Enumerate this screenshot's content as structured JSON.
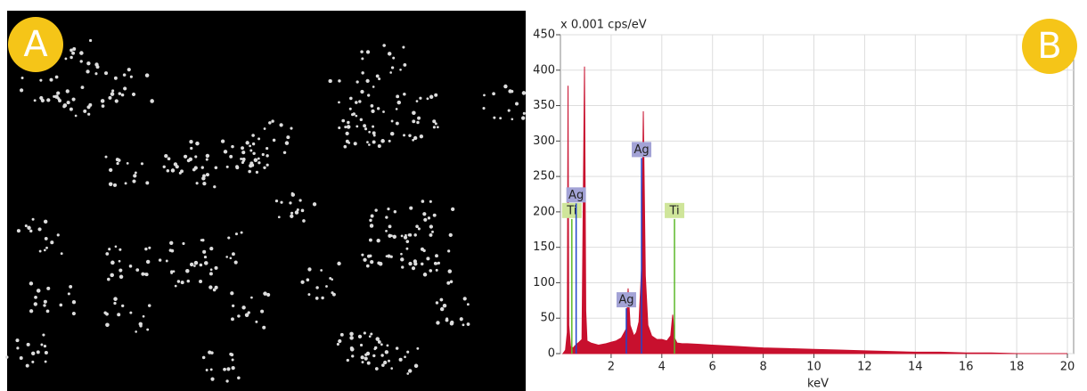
{
  "image_panel": {
    "label": "A"
  },
  "chart_data": {
    "type": "area",
    "panel_label": "B",
    "y_unit_label": "x 0.001 cps/eV",
    "x_label": "keV",
    "x": [
      0.1,
      0.2,
      0.27,
      0.3,
      0.33,
      0.4,
      0.5,
      0.6,
      0.7,
      0.85,
      0.95,
      1.0,
      1.05,
      1.2,
      1.5,
      1.8,
      2.0,
      2.2,
      2.4,
      2.6,
      2.67,
      2.75,
      2.9,
      3.0,
      3.1,
      3.2,
      3.27,
      3.35,
      3.45,
      3.6,
      3.8,
      4.0,
      4.2,
      4.35,
      4.43,
      4.5,
      4.6,
      4.8,
      5.0,
      5.5,
      6,
      6.5,
      7,
      7.5,
      8,
      9,
      10,
      11,
      12,
      13,
      14,
      15,
      16,
      17,
      18,
      19,
      20
    ],
    "series": [
      {
        "color": "#c8102e",
        "values": [
          0,
          5,
          30,
          378,
          40,
          10,
          8,
          12,
          15,
          20,
          405,
          60,
          18,
          15,
          12,
          14,
          16,
          18,
          22,
          35,
          92,
          40,
          25,
          30,
          45,
          120,
          342,
          110,
          40,
          25,
          20,
          20,
          18,
          25,
          55,
          22,
          15,
          14,
          14,
          13,
          12,
          11,
          10,
          9,
          8,
          7,
          6,
          5,
          4,
          3,
          2,
          2,
          1,
          1,
          0,
          0,
          0
        ]
      }
    ],
    "element_lines": [
      {
        "label": "Ti",
        "x": 0.45,
        "height": 190,
        "color": "#5cb82a",
        "label_color": "#cfe59a"
      },
      {
        "label": "Ag",
        "x": 0.62,
        "height": 212,
        "color": "#2244cc",
        "label_color": "#a3a3d6"
      },
      {
        "label": "Ag",
        "x": 2.6,
        "height": 64,
        "color": "#2244cc",
        "label_color": "#a3a3d6"
      },
      {
        "label": "Ag",
        "x": 3.2,
        "height": 276,
        "color": "#2244cc",
        "label_color": "#a3a3d6"
      },
      {
        "label": "Ti",
        "x": 4.5,
        "height": 190,
        "color": "#5cb82a",
        "label_color": "#cfe59a"
      }
    ],
    "xlim": [
      0,
      20
    ],
    "xticks": [
      2,
      4,
      6,
      8,
      10,
      12,
      14,
      16,
      18,
      20
    ],
    "ylim": [
      0,
      450
    ],
    "yticks": [
      0,
      50,
      100,
      150,
      200,
      250,
      300,
      350,
      400,
      450
    ],
    "grid": true
  }
}
